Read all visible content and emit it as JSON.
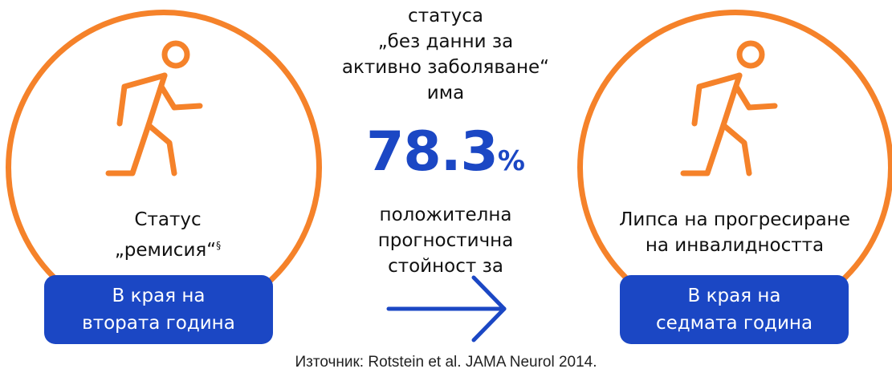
{
  "colors": {
    "accent": "#f5822a",
    "primary": "#1b47c4",
    "text": "#111111"
  },
  "left": {
    "icon": "walking-person-icon",
    "status_line1": "Статус",
    "status_line2": "„ремисия“",
    "status_marker": "§",
    "pill_line1": "В края на",
    "pill_line2": "втората година"
  },
  "center": {
    "top_lines": [
      "статуса",
      "„без данни за",
      "активно заболяване“",
      "има"
    ],
    "value": "78.3",
    "unit": "%",
    "bottom_lines": [
      "положителна",
      "прогностична",
      "стойност за"
    ],
    "arrow_icon": "arrow-right-icon"
  },
  "right": {
    "icon": "walking-person-icon",
    "status_line1": "Липса на прогресиране",
    "status_line2": "на инвалидността",
    "pill_line1": "В края на",
    "pill_line2": "седмата година"
  },
  "source": "Източник: Rotstein et al. JAMA Neurol 2014."
}
